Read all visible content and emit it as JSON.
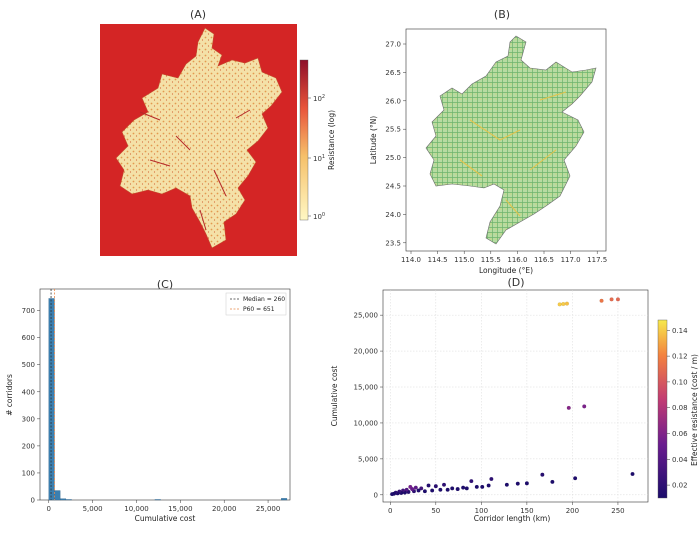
{
  "chart_data": [
    {
      "panel": "(A)",
      "type": "heatmap",
      "title": "(A)",
      "colorbar_label": "Resistance (log)",
      "colorbar_ticks": [
        "10",
        "10",
        "10"
      ],
      "colorbar_exps": [
        "2",
        "1",
        "0"
      ],
      "colors": {
        "background": "#d71f1f",
        "region": "#f3e0a6",
        "high": "#c0292b"
      }
    },
    {
      "panel": "(B)",
      "type": "map",
      "title": "(B)",
      "xlabel": "Longitude (°E)",
      "ylabel": "Latitude (°N)",
      "xticks": [
        "114.0",
        "114.5",
        "115.0",
        "115.5",
        "116.0",
        "116.5",
        "117.0",
        "117.5"
      ],
      "yticks": [
        "27.0",
        "26.5",
        "26.0",
        "25.5",
        "25.0",
        "24.5",
        "24.0",
        "23.5"
      ],
      "colors": {
        "corridor": "#8dc67e",
        "edge": "#d7c64a"
      }
    },
    {
      "panel": "(C)",
      "type": "bar",
      "title": "(C)",
      "xlabel": "Cumulative cost",
      "ylabel": "# corridors",
      "xticks": [
        "0",
        "5,000",
        "10,000",
        "15,000",
        "20,000",
        "25,000"
      ],
      "yticks": [
        "0",
        "100",
        "200",
        "300",
        "400",
        "500",
        "600",
        "700"
      ],
      "xlim": [
        -1000,
        27500
      ],
      "ylim": [
        0,
        780
      ],
      "legend": [
        {
          "label": "Median = 260",
          "style": "dashed",
          "color": "#333333"
        },
        {
          "label": "P60 = 651",
          "style": "dashed",
          "color": "#e8894a"
        }
      ],
      "legend_position": "top-right",
      "bins": [
        {
          "x0": 0,
          "x1": 650,
          "count": 745
        },
        {
          "x0": 650,
          "x1": 1300,
          "count": 35
        },
        {
          "x0": 1300,
          "x1": 1950,
          "count": 5
        },
        {
          "x0": 1950,
          "x1": 2600,
          "count": 2
        },
        {
          "x0": 12100,
          "x1": 12750,
          "count": 2
        },
        {
          "x0": 26500,
          "x1": 27150,
          "count": 6
        }
      ],
      "markers": [
        {
          "x": 260,
          "color": "#333333"
        },
        {
          "x": 651,
          "color": "#e8894a"
        }
      ],
      "bar_color": "#3b7fb0"
    },
    {
      "panel": "(D)",
      "type": "scatter",
      "title": "(D)",
      "xlabel": "Corridor length (km)",
      "ylabel": "Cumulative cost",
      "xticks": [
        "0",
        "50",
        "100",
        "150",
        "200",
        "250"
      ],
      "yticks": [
        "0",
        "5,000",
        "10,000",
        "15,000",
        "20,000",
        "25,000"
      ],
      "xlim": [
        -8,
        283
      ],
      "ylim": [
        -1000,
        28500
      ],
      "colorbar_label": "Effective resistance (cost / m)",
      "colorbar_ticks": [
        "0.14",
        "0.12",
        "0.10",
        "0.08",
        "0.06",
        "0.04",
        "0.02"
      ],
      "colorbar_range": [
        0.01,
        0.148
      ],
      "grid": true,
      "points": [
        {
          "x": 186,
          "y": 26500,
          "c": 0.14
        },
        {
          "x": 190,
          "y": 26550,
          "c": 0.14
        },
        {
          "x": 194,
          "y": 26600,
          "c": 0.137
        },
        {
          "x": 232,
          "y": 27000,
          "c": 0.115
        },
        {
          "x": 243,
          "y": 27200,
          "c": 0.11
        },
        {
          "x": 250,
          "y": 27200,
          "c": 0.108
        },
        {
          "x": 196,
          "y": 12100,
          "c": 0.062
        },
        {
          "x": 213,
          "y": 12300,
          "c": 0.058
        },
        {
          "x": 266,
          "y": 2900,
          "c": 0.011
        },
        {
          "x": 203,
          "y": 2300,
          "c": 0.012
        },
        {
          "x": 178,
          "y": 1800,
          "c": 0.011
        },
        {
          "x": 167,
          "y": 2800,
          "c": 0.017
        },
        {
          "x": 150,
          "y": 1600,
          "c": 0.011
        },
        {
          "x": 140,
          "y": 1550,
          "c": 0.011
        },
        {
          "x": 128,
          "y": 1400,
          "c": 0.011
        },
        {
          "x": 111,
          "y": 2200,
          "c": 0.02
        },
        {
          "x": 108,
          "y": 1300,
          "c": 0.012
        },
        {
          "x": 101,
          "y": 1100,
          "c": 0.011
        },
        {
          "x": 95,
          "y": 1100,
          "c": 0.011
        },
        {
          "x": 89,
          "y": 1900,
          "c": 0.021
        },
        {
          "x": 84,
          "y": 900,
          "c": 0.011
        },
        {
          "x": 80,
          "y": 1000,
          "c": 0.012
        },
        {
          "x": 74,
          "y": 800,
          "c": 0.011
        },
        {
          "x": 68,
          "y": 900,
          "c": 0.012
        },
        {
          "x": 63,
          "y": 700,
          "c": 0.011
        },
        {
          "x": 59,
          "y": 1400,
          "c": 0.02
        },
        {
          "x": 55,
          "y": 700,
          "c": 0.012
        },
        {
          "x": 50,
          "y": 1200,
          "c": 0.018
        },
        {
          "x": 46,
          "y": 600,
          "c": 0.011
        },
        {
          "x": 42,
          "y": 1300,
          "c": 0.016
        },
        {
          "x": 38,
          "y": 500,
          "c": 0.011
        },
        {
          "x": 34,
          "y": 900,
          "c": 0.03
        },
        {
          "x": 31,
          "y": 600,
          "c": 0.012
        },
        {
          "x": 28,
          "y": 1000,
          "c": 0.045
        },
        {
          "x": 26,
          "y": 500,
          "c": 0.02
        },
        {
          "x": 24,
          "y": 800,
          "c": 0.05
        },
        {
          "x": 22,
          "y": 1100,
          "c": 0.055
        },
        {
          "x": 20,
          "y": 400,
          "c": 0.015
        },
        {
          "x": 18,
          "y": 700,
          "c": 0.04
        },
        {
          "x": 16,
          "y": 300,
          "c": 0.012
        },
        {
          "x": 14,
          "y": 600,
          "c": 0.03
        },
        {
          "x": 12,
          "y": 250,
          "c": 0.011
        },
        {
          "x": 10,
          "y": 450,
          "c": 0.025
        },
        {
          "x": 8,
          "y": 200,
          "c": 0.011
        },
        {
          "x": 6,
          "y": 300,
          "c": 0.02
        },
        {
          "x": 4,
          "y": 150,
          "c": 0.011
        },
        {
          "x": 2,
          "y": 100,
          "c": 0.011
        }
      ]
    }
  ]
}
